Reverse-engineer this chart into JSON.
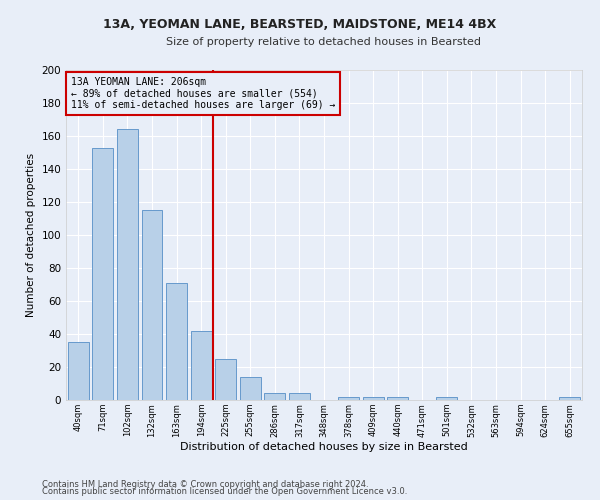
{
  "title1": "13A, YEOMAN LANE, BEARSTED, MAIDSTONE, ME14 4BX",
  "title2": "Size of property relative to detached houses in Bearsted",
  "xlabel": "Distribution of detached houses by size in Bearsted",
  "ylabel": "Number of detached properties",
  "bin_labels": [
    "40sqm",
    "71sqm",
    "102sqm",
    "132sqm",
    "163sqm",
    "194sqm",
    "225sqm",
    "255sqm",
    "286sqm",
    "317sqm",
    "348sqm",
    "378sqm",
    "409sqm",
    "440sqm",
    "471sqm",
    "501sqm",
    "532sqm",
    "563sqm",
    "594sqm",
    "624sqm",
    "655sqm"
  ],
  "bar_values": [
    35,
    153,
    164,
    115,
    71,
    42,
    25,
    14,
    4,
    4,
    0,
    2,
    2,
    2,
    0,
    2,
    0,
    0,
    0,
    0,
    2
  ],
  "bar_color": "#b8d0e8",
  "bar_edge_color": "#6699cc",
  "vline_x": 5.5,
  "vline_color": "#cc0000",
  "annotation_title": "13A YEOMAN LANE: 206sqm",
  "annotation_line1": "← 89% of detached houses are smaller (554)",
  "annotation_line2": "11% of semi-detached houses are larger (69) →",
  "annotation_box_color": "#cc0000",
  "ylim": [
    0,
    200
  ],
  "yticks": [
    0,
    20,
    40,
    60,
    80,
    100,
    120,
    140,
    160,
    180,
    200
  ],
  "footer1": "Contains HM Land Registry data © Crown copyright and database right 2024.",
  "footer2": "Contains public sector information licensed under the Open Government Licence v3.0.",
  "bg_color": "#e8eef8",
  "grid_color": "#ffffff",
  "bar_width": 0.85
}
